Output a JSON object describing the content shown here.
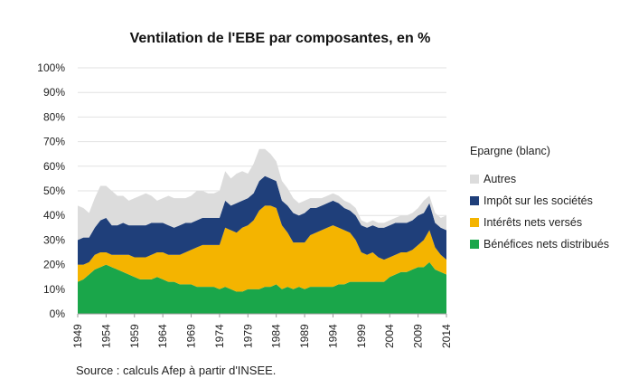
{
  "chart_data": {
    "type": "area",
    "title": "Ventilation de l'EBE par composantes, en %",
    "x_start": 1949,
    "x_end": 2014,
    "ylim": [
      0,
      100
    ],
    "y_ticks": [
      "0%",
      "10%",
      "20%",
      "30%",
      "40%",
      "50%",
      "60%",
      "70%",
      "80%",
      "90%",
      "100%"
    ],
    "x_ticks": [
      "1949",
      "1954",
      "1959",
      "1964",
      "1969",
      "1974",
      "1979",
      "1984",
      "1989",
      "1994",
      "1999",
      "2004",
      "2009",
      "2014"
    ],
    "stacking": "stacked",
    "legend_heading": "Epargne (blanc)",
    "series": [
      {
        "name": "Bénéfices nets distribués",
        "color": "#1aa64a",
        "values": [
          13,
          14,
          16,
          18,
          19,
          20,
          19,
          18,
          17,
          16,
          15,
          14,
          14,
          14,
          15,
          14,
          13,
          13,
          12,
          12,
          12,
          11,
          11,
          11,
          11,
          10,
          11,
          10,
          9,
          9,
          10,
          10,
          10,
          11,
          11,
          12,
          10,
          11,
          10,
          11,
          10,
          11,
          11,
          11,
          11,
          11,
          12,
          12,
          13,
          13,
          13,
          13,
          13,
          13,
          13,
          15,
          16,
          17,
          17,
          18,
          19,
          19,
          21,
          18,
          17,
          16
        ]
      },
      {
        "name": "Intérêts nets versés",
        "color": "#f4b400",
        "values": [
          7,
          6,
          5,
          6,
          6,
          5,
          5,
          6,
          7,
          8,
          8,
          9,
          9,
          10,
          10,
          11,
          11,
          11,
          12,
          13,
          14,
          16,
          17,
          17,
          17,
          18,
          24,
          24,
          24,
          26,
          26,
          28,
          32,
          33,
          33,
          31,
          26,
          22,
          19,
          18,
          19,
          21,
          22,
          23,
          24,
          25,
          23,
          22,
          20,
          17,
          12,
          11,
          12,
          10,
          9,
          8,
          8,
          8,
          8,
          8,
          9,
          11,
          13,
          9,
          7,
          6
        ]
      },
      {
        "name": "Impôt sur les sociétés",
        "color": "#1f3f7a",
        "values": [
          10,
          11,
          10,
          11,
          13,
          14,
          12,
          12,
          13,
          12,
          13,
          13,
          13,
          13,
          12,
          12,
          12,
          11,
          12,
          12,
          11,
          11,
          11,
          11,
          11,
          11,
          11,
          10,
          12,
          11,
          11,
          11,
          12,
          12,
          11,
          11,
          10,
          11,
          12,
          11,
          12,
          11,
          10,
          10,
          10,
          10,
          10,
          9,
          9,
          10,
          11,
          11,
          11,
          12,
          13,
          13,
          13,
          12,
          12,
          12,
          12,
          11,
          11,
          10,
          11,
          12
        ]
      },
      {
        "name": "Autres",
        "color": "#dcdcdc",
        "values": [
          14,
          12,
          10,
          12,
          14,
          13,
          14,
          12,
          11,
          10,
          11,
          12,
          13,
          11,
          9,
          10,
          12,
          12,
          11,
          10,
          11,
          12,
          11,
          10,
          10,
          11,
          12,
          11,
          12,
          12,
          10,
          12,
          13,
          11,
          10,
          8,
          8,
          7,
          6,
          5,
          5,
          4,
          4,
          3,
          3,
          3,
          3,
          3,
          3,
          3,
          2,
          2,
          2,
          2,
          2,
          2,
          2,
          3,
          3,
          3,
          3,
          5,
          3,
          4,
          4,
          6
        ]
      }
    ]
  },
  "source_note": "Source : calculs Afep à partir d'INSEE."
}
